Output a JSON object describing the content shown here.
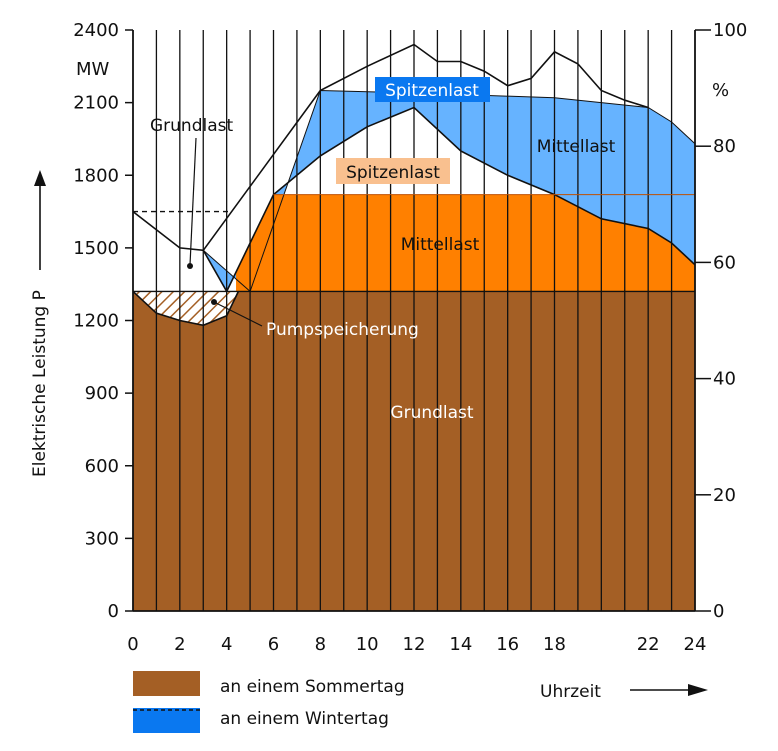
{
  "chart_data": {
    "type": "area",
    "x": [
      0,
      2,
      4,
      6,
      8,
      10,
      12,
      14,
      16,
      18,
      20,
      22,
      24
    ],
    "xlabel": "Uhrzeit",
    "ylabel": "Elektrische Leistung P",
    "y_unit": "MW",
    "ylim": [
      0,
      2400
    ],
    "y2_unit": "%",
    "y2lim": [
      0,
      100
    ],
    "x_ticks": [
      "0",
      "2",
      "4",
      "6",
      "8",
      "10",
      "12",
      "14",
      "16",
      "18",
      "22",
      "24"
    ],
    "y_ticks": [
      0,
      300,
      600,
      900,
      1200,
      1500,
      1800,
      2100,
      2400
    ],
    "y2_ticks": [
      0,
      20,
      40,
      60,
      80,
      100
    ],
    "y2_top_label": "100",
    "grid": "vertical lines every hour",
    "colors": {
      "sommer_grundlast": "#a45f25",
      "sommer_mittellast": "#ff8000",
      "sommer_spitzenlast": "#ffffff",
      "winter": "#66b3ff",
      "spitzenlast_label_bg": "#f9c08f"
    },
    "sommer": {
      "grundlast_mw": 1320,
      "mittellast_mw": 1720,
      "pumpspeicherung": {
        "x": [
          0,
          1,
          2,
          3,
          4,
          4.5
        ],
        "y": [
          1320,
          1230,
          1200,
          1180,
          1220,
          1320
        ]
      },
      "gesamtlast": {
        "x": [
          3,
          4,
          6,
          8,
          10,
          12,
          14,
          16,
          18,
          20,
          22,
          23,
          24
        ],
        "y": [
          1490,
          1320,
          1720,
          1880,
          2000,
          2080,
          1900,
          1800,
          1720,
          1620,
          1580,
          1520,
          1430
        ]
      }
    },
    "winter": {
      "mittellast_oberkante": {
        "x": [
          3,
          5,
          8,
          12,
          18,
          22,
          23,
          24
        ],
        "y": [
          1490,
          1320,
          2150,
          2140,
          2120,
          2080,
          2020,
          1930
        ]
      },
      "gesamtlast": {
        "x": [
          0,
          2,
          3,
          8,
          10,
          12,
          13,
          14,
          15,
          16,
          17,
          18,
          19,
          20,
          21,
          22
        ],
        "y": [
          1650,
          1500,
          1490,
          2150,
          2250,
          2340,
          2270,
          2270,
          2230,
          2170,
          2200,
          2310,
          2260,
          2150,
          2110,
          2080
        ]
      },
      "grundlast_gestrichelt_mw": 1650
    },
    "annotations": {
      "grundlast_top": "Grundlast",
      "spitzenlast_winter": "Spitzenlast",
      "spitzenlast_sommer": "Spitzenlast",
      "mittellast_winter": "Mittellast",
      "mittellast_sommer": "Mittellast",
      "pumpspeicherung": "Pumpspeicherung",
      "grundlast_sommer": "Grundlast"
    },
    "legend": [
      {
        "label": "an einem Sommertag",
        "color": "#a45f25",
        "style": "solid"
      },
      {
        "label": "an einem Wintertag",
        "color": "#0077ee",
        "style": "dashed"
      }
    ]
  }
}
